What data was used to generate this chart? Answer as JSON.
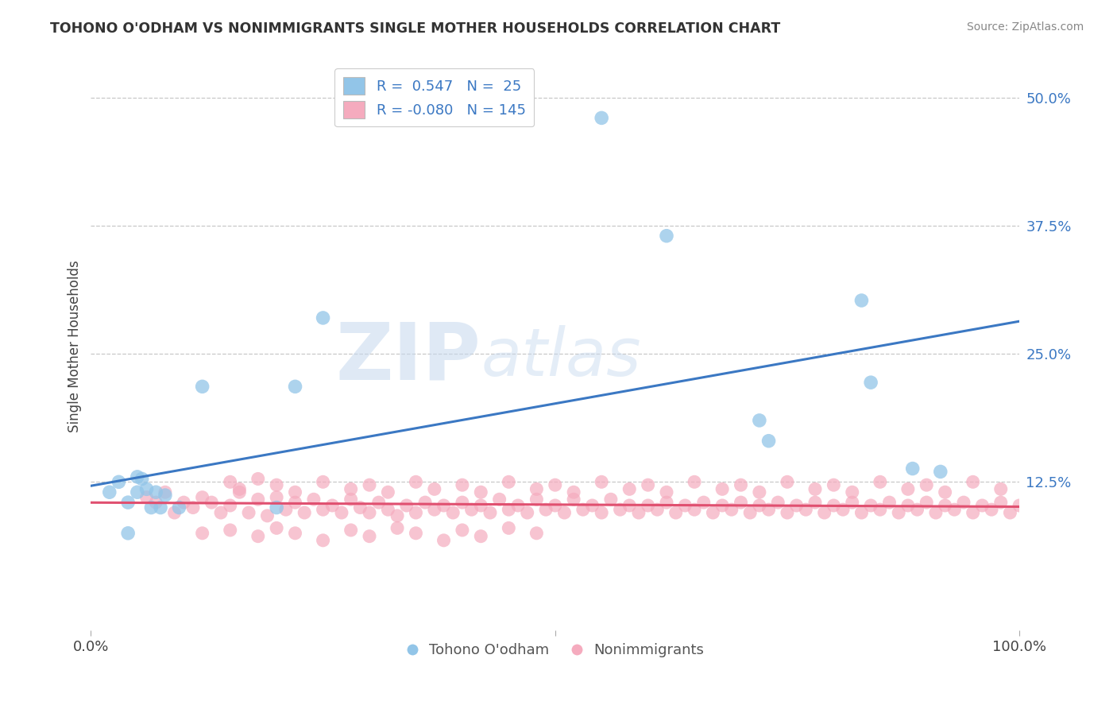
{
  "title": "TOHONO O'ODHAM VS NONIMMIGRANTS SINGLE MOTHER HOUSEHOLDS CORRELATION CHART",
  "source": "Source: ZipAtlas.com",
  "ylabel": "Single Mother Households",
  "ytick_labels": [
    "12.5%",
    "25.0%",
    "37.5%",
    "50.0%"
  ],
  "ytick_values": [
    0.125,
    0.25,
    0.375,
    0.5
  ],
  "xlim": [
    0.0,
    1.0
  ],
  "ylim": [
    -0.02,
    0.535
  ],
  "legend_label1": "Tohono O'odham",
  "legend_label2": "Nonimmigrants",
  "r1": 0.547,
  "n1": 25,
  "r2": -0.08,
  "n2": 145,
  "color_blue": "#92C5E8",
  "color_pink": "#F5ABBE",
  "color_blue_line": "#3B78C3",
  "color_pink_line": "#E05070",
  "background_color": "#FFFFFF",
  "grid_color": "#C8C8C8",
  "tohono_x": [
    0.02,
    0.03,
    0.04,
    0.04,
    0.05,
    0.05,
    0.055,
    0.06,
    0.065,
    0.07,
    0.075,
    0.08,
    0.095,
    0.12,
    0.2,
    0.22,
    0.25,
    0.55,
    0.62,
    0.72,
    0.73,
    0.83,
    0.84,
    0.885,
    0.915
  ],
  "tohono_y": [
    0.115,
    0.125,
    0.105,
    0.075,
    0.13,
    0.115,
    0.128,
    0.118,
    0.1,
    0.115,
    0.1,
    0.112,
    0.1,
    0.218,
    0.1,
    0.218,
    0.285,
    0.48,
    0.365,
    0.185,
    0.165,
    0.302,
    0.222,
    0.138,
    0.135
  ],
  "nonimm_x": [
    0.06,
    0.07,
    0.08,
    0.09,
    0.1,
    0.11,
    0.12,
    0.13,
    0.14,
    0.15,
    0.16,
    0.17,
    0.18,
    0.19,
    0.2,
    0.21,
    0.22,
    0.23,
    0.24,
    0.25,
    0.26,
    0.27,
    0.28,
    0.29,
    0.3,
    0.31,
    0.32,
    0.33,
    0.34,
    0.35,
    0.36,
    0.37,
    0.38,
    0.39,
    0.4,
    0.41,
    0.42,
    0.43,
    0.44,
    0.45,
    0.46,
    0.47,
    0.48,
    0.49,
    0.5,
    0.51,
    0.52,
    0.53,
    0.54,
    0.55,
    0.56,
    0.57,
    0.58,
    0.59,
    0.6,
    0.61,
    0.62,
    0.63,
    0.64,
    0.65,
    0.66,
    0.67,
    0.68,
    0.69,
    0.7,
    0.71,
    0.72,
    0.73,
    0.74,
    0.75,
    0.76,
    0.77,
    0.78,
    0.79,
    0.8,
    0.81,
    0.82,
    0.83,
    0.84,
    0.85,
    0.86,
    0.87,
    0.88,
    0.89,
    0.9,
    0.91,
    0.92,
    0.93,
    0.94,
    0.95,
    0.96,
    0.97,
    0.98,
    0.99,
    1.0,
    0.15,
    0.16,
    0.18,
    0.2,
    0.22,
    0.25,
    0.28,
    0.3,
    0.32,
    0.35,
    0.37,
    0.4,
    0.42,
    0.45,
    0.48,
    0.5,
    0.52,
    0.55,
    0.58,
    0.6,
    0.62,
    0.65,
    0.68,
    0.7,
    0.72,
    0.75,
    0.78,
    0.8,
    0.82,
    0.85,
    0.88,
    0.9,
    0.92,
    0.95,
    0.98,
    0.12,
    0.15,
    0.18,
    0.2,
    0.22,
    0.25,
    0.28,
    0.3,
    0.33,
    0.35,
    0.38,
    0.4,
    0.42,
    0.45,
    0.48
  ],
  "nonimm_y": [
    0.11,
    0.105,
    0.115,
    0.095,
    0.105,
    0.1,
    0.11,
    0.105,
    0.095,
    0.102,
    0.115,
    0.095,
    0.108,
    0.092,
    0.11,
    0.098,
    0.105,
    0.095,
    0.108,
    0.098,
    0.102,
    0.095,
    0.108,
    0.1,
    0.095,
    0.105,
    0.098,
    0.092,
    0.102,
    0.095,
    0.105,
    0.098,
    0.102,
    0.095,
    0.105,
    0.098,
    0.102,
    0.095,
    0.108,
    0.098,
    0.102,
    0.095,
    0.108,
    0.098,
    0.102,
    0.095,
    0.108,
    0.098,
    0.102,
    0.095,
    0.108,
    0.098,
    0.102,
    0.095,
    0.102,
    0.098,
    0.105,
    0.095,
    0.102,
    0.098,
    0.105,
    0.095,
    0.102,
    0.098,
    0.105,
    0.095,
    0.102,
    0.098,
    0.105,
    0.095,
    0.102,
    0.098,
    0.105,
    0.095,
    0.102,
    0.098,
    0.105,
    0.095,
    0.102,
    0.098,
    0.105,
    0.095,
    0.102,
    0.098,
    0.105,
    0.095,
    0.102,
    0.098,
    0.105,
    0.095,
    0.102,
    0.098,
    0.105,
    0.095,
    0.102,
    0.125,
    0.118,
    0.128,
    0.122,
    0.115,
    0.125,
    0.118,
    0.122,
    0.115,
    0.125,
    0.118,
    0.122,
    0.115,
    0.125,
    0.118,
    0.122,
    0.115,
    0.125,
    0.118,
    0.122,
    0.115,
    0.125,
    0.118,
    0.122,
    0.115,
    0.125,
    0.118,
    0.122,
    0.115,
    0.125,
    0.118,
    0.122,
    0.115,
    0.125,
    0.118,
    0.075,
    0.078,
    0.072,
    0.08,
    0.075,
    0.068,
    0.078,
    0.072,
    0.08,
    0.075,
    0.068,
    0.078,
    0.072,
    0.08,
    0.075
  ]
}
